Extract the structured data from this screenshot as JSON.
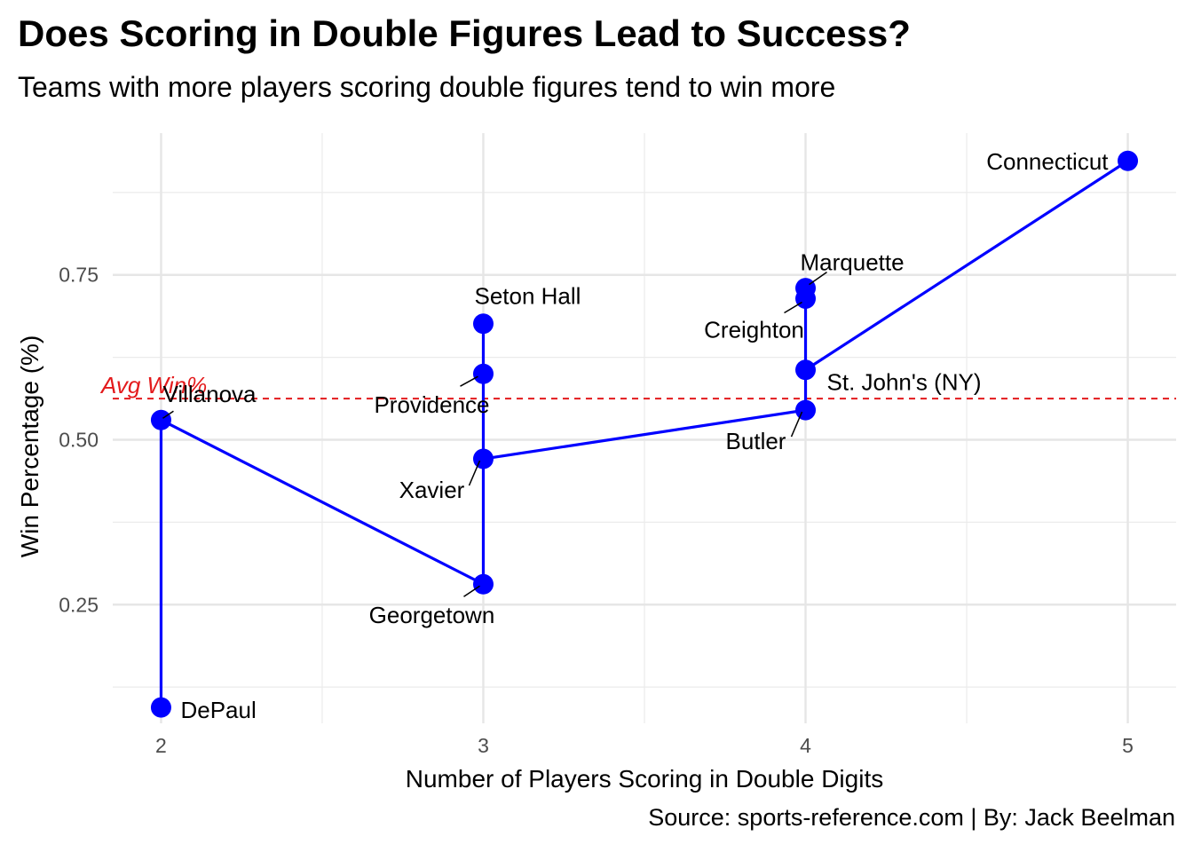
{
  "chart_data": {
    "type": "scatter",
    "title": "Does Scoring in Double Figures Lead to Success?",
    "subtitle": "Teams with more players scoring double figures tend to win more",
    "caption": "Source: sports-reference.com | By: Jack Beelman",
    "xlabel": "Number of Players Scoring in Double Digits",
    "ylabel": "Win Percentage (%)",
    "xlim": [
      1.85,
      5.15
    ],
    "ylim": [
      0.07,
      0.965
    ],
    "x_ticks": [
      2,
      3,
      4,
      5
    ],
    "x_tick_labels": [
      "2",
      "3",
      "4",
      "5"
    ],
    "y_ticks": [
      0.25,
      0.5,
      0.75
    ],
    "y_tick_labels": [
      "0.25",
      "0.50",
      "0.75"
    ],
    "grid": true,
    "legend": "none",
    "point_color": "#0000ff",
    "line_color": "#0000ff",
    "reference_line": {
      "y": 0.5625,
      "label": "Avg Win%",
      "color": "#e31a1c",
      "style": "dashed"
    },
    "points": [
      {
        "team": "DePaul",
        "x": 2,
        "y": 0.094
      },
      {
        "team": "Villanova",
        "x": 2,
        "y": 0.53
      },
      {
        "team": "Georgetown",
        "x": 3,
        "y": 0.281
      },
      {
        "team": "Xavier",
        "x": 3,
        "y": 0.471
      },
      {
        "team": "Providence",
        "x": 3,
        "y": 0.6
      },
      {
        "team": "Seton Hall",
        "x": 3,
        "y": 0.676
      },
      {
        "team": "Butler",
        "x": 4,
        "y": 0.545
      },
      {
        "team": "St. John's (NY)",
        "x": 4,
        "y": 0.606
      },
      {
        "team": "Creighton",
        "x": 4,
        "y": 0.714
      },
      {
        "team": "Marquette",
        "x": 4,
        "y": 0.73
      },
      {
        "team": "Connecticut",
        "x": 5,
        "y": 0.923
      }
    ],
    "path_order": [
      "DePaul",
      "Villanova",
      "Georgetown",
      "Xavier",
      "Providence",
      "Seton Hall",
      "Xavier",
      "Butler",
      "St. John's (NY)",
      "Creighton",
      "Marquette",
      "Creighton",
      "St. John's (NY)",
      "Connecticut"
    ]
  }
}
